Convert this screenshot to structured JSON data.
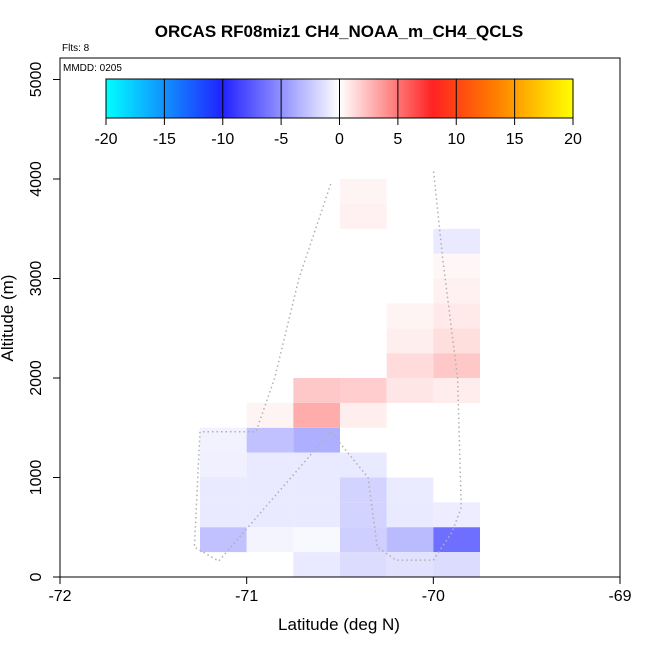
{
  "chart_data": {
    "type": "heatmap",
    "title": "ORCAS RF08miz1 CH4_NOAA_m_CH4_QCLS",
    "flights_label": "Flts: 8",
    "date_label": "MMDD: 0205",
    "xlabel": "Latitude (deg N)",
    "ylabel": "Altitude (m)",
    "xlim": [
      -72,
      -69
    ],
    "ylim": [
      0,
      5200
    ],
    "xticks": [
      -72,
      -71,
      -70,
      -69
    ],
    "yticks": [
      0,
      1000,
      2000,
      3000,
      4000,
      5000
    ],
    "colorbar": {
      "min": -20,
      "max": 20,
      "ticks": [
        -20,
        -15,
        -10,
        -5,
        0,
        5,
        10,
        15,
        20
      ],
      "stops": [
        {
          "v": -20,
          "color": "#00ffff"
        },
        {
          "v": -10,
          "color": "#2222ff"
        },
        {
          "v": 0,
          "color": "#ffffff"
        },
        {
          "v": 8,
          "color": "#ff2222"
        },
        {
          "v": 13,
          "color": "#ff7700"
        },
        {
          "v": 20,
          "color": "#ffff00"
        }
      ]
    },
    "cell_width_deg": 0.25,
    "cell_height_m": 250,
    "cells": [
      {
        "lon": -71.25,
        "alt": 1250,
        "v": -0.6
      },
      {
        "lon": -71.0,
        "alt": 1250,
        "v": -2.8
      },
      {
        "lon": -70.75,
        "alt": 1250,
        "v": -3.6
      },
      {
        "lon": -71.25,
        "alt": 1000,
        "v": -0.7
      },
      {
        "lon": -71.0,
        "alt": 1000,
        "v": -1.0
      },
      {
        "lon": -70.75,
        "alt": 1000,
        "v": -1.0
      },
      {
        "lon": -70.5,
        "alt": 1000,
        "v": -1.0
      },
      {
        "lon": -71.25,
        "alt": 750,
        "v": -1.0
      },
      {
        "lon": -71.0,
        "alt": 750,
        "v": -1.0
      },
      {
        "lon": -70.75,
        "alt": 750,
        "v": -1.0
      },
      {
        "lon": -70.5,
        "alt": 750,
        "v": -2.0
      },
      {
        "lon": -70.25,
        "alt": 750,
        "v": -0.9
      },
      {
        "lon": -71.25,
        "alt": 500,
        "v": -1.0
      },
      {
        "lon": -71.0,
        "alt": 500,
        "v": -1.0
      },
      {
        "lon": -70.75,
        "alt": 500,
        "v": -1.0
      },
      {
        "lon": -70.5,
        "alt": 500,
        "v": -2.0
      },
      {
        "lon": -70.25,
        "alt": 500,
        "v": -1.0
      },
      {
        "lon": -70.0,
        "alt": 500,
        "v": -0.8
      },
      {
        "lon": -71.25,
        "alt": 250,
        "v": -2.8
      },
      {
        "lon": -71.0,
        "alt": 250,
        "v": -0.5
      },
      {
        "lon": -70.75,
        "alt": 250,
        "v": -0.3
      },
      {
        "lon": -70.5,
        "alt": 250,
        "v": -2.2
      },
      {
        "lon": -70.25,
        "alt": 250,
        "v": -3.1
      },
      {
        "lon": -70.0,
        "alt": 250,
        "v": -6.5
      },
      {
        "lon": -70.75,
        "alt": 0,
        "v": -1.0
      },
      {
        "lon": -70.5,
        "alt": 0,
        "v": -1.6
      },
      {
        "lon": -70.25,
        "alt": 0,
        "v": -1.3
      },
      {
        "lon": -70.0,
        "alt": 0,
        "v": -1.6
      },
      {
        "lon": -71.0,
        "alt": 1500,
        "v": 0.4
      },
      {
        "lon": -70.75,
        "alt": 1500,
        "v": 3.0
      },
      {
        "lon": -70.5,
        "alt": 1500,
        "v": 0.6
      },
      {
        "lon": -70.75,
        "alt": 1750,
        "v": 2.0
      },
      {
        "lon": -70.5,
        "alt": 1750,
        "v": 1.8
      },
      {
        "lon": -70.25,
        "alt": 1750,
        "v": 0.9
      },
      {
        "lon": -70.0,
        "alt": 1750,
        "v": 0.7
      },
      {
        "lon": -70.25,
        "alt": 2000,
        "v": 1.3
      },
      {
        "lon": -70.0,
        "alt": 2000,
        "v": 2.0
      },
      {
        "lon": -70.25,
        "alt": 2250,
        "v": 0.6
      },
      {
        "lon": -70.0,
        "alt": 2250,
        "v": 1.2
      },
      {
        "lon": -70.25,
        "alt": 2500,
        "v": 0.4
      },
      {
        "lon": -70.0,
        "alt": 2500,
        "v": 0.8
      },
      {
        "lon": -70.0,
        "alt": 2750,
        "v": 0.5
      },
      {
        "lon": -70.0,
        "alt": 3000,
        "v": 0.3
      },
      {
        "lon": -70.0,
        "alt": 3250,
        "v": -1.0
      },
      {
        "lon": -70.5,
        "alt": 3500,
        "v": 0.5
      },
      {
        "lon": -70.5,
        "alt": 3750,
        "v": 0.4
      }
    ],
    "flight_track": {
      "lat": [
        -70.55,
        -70.72,
        -70.85,
        -70.95,
        -71.0,
        -71.05,
        -71.2,
        -71.25,
        -71.28,
        -71.15,
        -70.55,
        -70.35,
        -70.3,
        -70.2,
        -70.0,
        -69.9,
        -69.85,
        -69.87,
        -69.95,
        -70.0
      ],
      "alt": [
        3950,
        3000,
        2000,
        1460,
        1460,
        1460,
        1460,
        1460,
        300,
        160,
        1460,
        1000,
        300,
        170,
        170,
        450,
        700,
        2000,
        3200,
        4100
      ]
    }
  }
}
